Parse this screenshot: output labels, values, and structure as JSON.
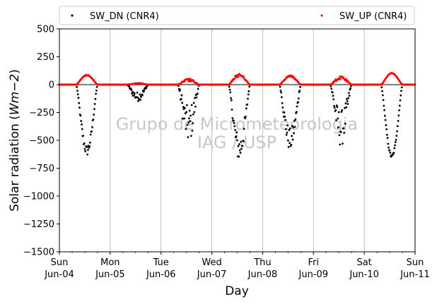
{
  "chart_data": {
    "type": "scatter",
    "title": "",
    "xlabel": "Day",
    "ylabel": "Solar radiation ($W m{-2}$)",
    "ylabel_parts": {
      "text": "Solar radiation (",
      "math": "Wm−2",
      "close": ")"
    },
    "ylim": [
      -1500,
      500
    ],
    "yticks": [
      500,
      250,
      0,
      -250,
      -500,
      -750,
      -1000,
      -1250,
      -1500
    ],
    "ytick_labels": [
      "500",
      "250",
      "0",
      "−250",
      "−500",
      "−750",
      "−1000",
      "−1250",
      "−1500"
    ],
    "xlim": [
      "2017-06-04",
      "2017-06-11"
    ],
    "xticks": [
      {
        "day": "Sun",
        "date": "Jun-04"
      },
      {
        "day": "Mon",
        "date": "Jun-05"
      },
      {
        "day": "Tue",
        "date": "Jun-06"
      },
      {
        "day": "Wed",
        "date": "Jun-07"
      },
      {
        "day": "Thu",
        "date": "Jun-08"
      },
      {
        "day": "Fri",
        "date": "Jun-09"
      },
      {
        "day": "Sat",
        "date": "Jun-10"
      },
      {
        "day": "Sun",
        "date": "Jun-11"
      }
    ],
    "grid": "vertical",
    "legend": {
      "placement": "top",
      "entries": [
        "SW_DN (CNR4)",
        "SW_UP (CNR4)"
      ]
    },
    "watermark": [
      "Grupo de Micrometeorologia",
      "IAG / USP"
    ],
    "series": [
      {
        "name": "SW_DN (CNR4)",
        "color": "#000000",
        "daily": [
          {
            "date": "2017-06-04",
            "min": -640,
            "noise": 0.15
          },
          {
            "date": "2017-06-05",
            "min": -150,
            "noise": 0.55
          },
          {
            "date": "2017-06-06",
            "min": -540,
            "noise": 0.65
          },
          {
            "date": "2017-06-07",
            "min": -700,
            "noise": 0.35
          },
          {
            "date": "2017-06-08",
            "min": -600,
            "noise": 0.35
          },
          {
            "date": "2017-06-09",
            "min": -560,
            "noise": 0.6
          },
          {
            "date": "2017-06-10",
            "min": -660,
            "noise": 0.05
          }
        ]
      },
      {
        "name": "SW_UP (CNR4)",
        "color": "#ff0000",
        "daily": [
          {
            "date": "2017-06-04",
            "max": 90,
            "noise": 0.1
          },
          {
            "date": "2017-06-05",
            "max": 15,
            "noise": 0.4
          },
          {
            "date": "2017-06-06",
            "max": 55,
            "noise": 0.5
          },
          {
            "date": "2017-06-07",
            "max": 100,
            "noise": 0.3
          },
          {
            "date": "2017-06-08",
            "max": 85,
            "noise": 0.2
          },
          {
            "date": "2017-06-09",
            "max": 75,
            "noise": 0.4
          },
          {
            "date": "2017-06-10",
            "max": 105,
            "noise": 0.05
          }
        ]
      }
    ],
    "daylight_hours": [
      8,
      18
    ]
  }
}
